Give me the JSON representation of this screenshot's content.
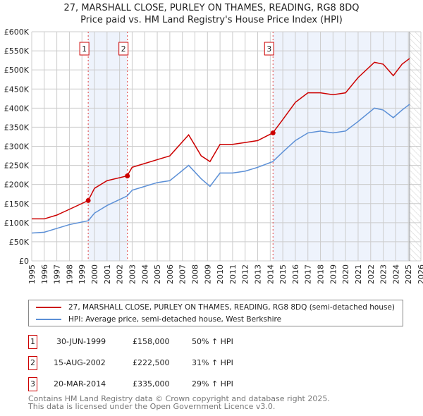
{
  "chart_data": {
    "type": "line",
    "title": "27, MARSHALL CLOSE, PURLEY ON THAMES, READING, RG8 8DQ",
    "subtitle": "Price paid vs. HM Land Registry's House Price Index (HPI)",
    "xlim": [
      1995,
      2026
    ],
    "ylim": [
      0,
      600000
    ],
    "x_ticks": [
      "1995",
      "1996",
      "1997",
      "1998",
      "1999",
      "2000",
      "2001",
      "2002",
      "2003",
      "2004",
      "2005",
      "2006",
      "2007",
      "2008",
      "2009",
      "2010",
      "2011",
      "2012",
      "2013",
      "2014",
      "2015",
      "2016",
      "2017",
      "2018",
      "2019",
      "2020",
      "2021",
      "2022",
      "2023",
      "2024",
      "2025",
      "2026"
    ],
    "y_ticks": [
      {
        "v": 0,
        "label": "£0"
      },
      {
        "v": 50000,
        "label": "£50K"
      },
      {
        "v": 100000,
        "label": "£100K"
      },
      {
        "v": 150000,
        "label": "£150K"
      },
      {
        "v": 200000,
        "label": "£200K"
      },
      {
        "v": 250000,
        "label": "£250K"
      },
      {
        "v": 300000,
        "label": "£300K"
      },
      {
        "v": 350000,
        "label": "£350K"
      },
      {
        "v": 400000,
        "label": "£400K"
      },
      {
        "v": 450000,
        "label": "£450K"
      },
      {
        "v": 500000,
        "label": "£500K"
      },
      {
        "v": 550000,
        "label": "£550K"
      },
      {
        "v": 600000,
        "label": "£600K"
      }
    ],
    "grid": true,
    "series": [
      {
        "name": "27, MARSHALL CLOSE, PURLEY ON THAMES, READING, RG8 8DQ (semi-detached house)",
        "color": "#cc0000",
        "points": [
          [
            1995,
            110000
          ],
          [
            1996,
            110000
          ],
          [
            1997,
            120000
          ],
          [
            1998,
            135000
          ],
          [
            1999.5,
            158000
          ],
          [
            2000,
            190000
          ],
          [
            2001,
            210000
          ],
          [
            2002.6,
            222500
          ],
          [
            2003,
            245000
          ],
          [
            2004,
            255000
          ],
          [
            2005,
            265000
          ],
          [
            2006,
            275000
          ],
          [
            2007.5,
            330000
          ],
          [
            2008.5,
            275000
          ],
          [
            2009.2,
            260000
          ],
          [
            2010,
            305000
          ],
          [
            2011,
            305000
          ],
          [
            2012,
            310000
          ],
          [
            2013,
            315000
          ],
          [
            2014.2,
            335000
          ],
          [
            2015,
            370000
          ],
          [
            2016,
            415000
          ],
          [
            2017,
            440000
          ],
          [
            2018,
            440000
          ],
          [
            2019,
            435000
          ],
          [
            2020,
            440000
          ],
          [
            2021,
            480000
          ],
          [
            2022.3,
            520000
          ],
          [
            2023,
            515000
          ],
          [
            2023.8,
            485000
          ],
          [
            2024.5,
            515000
          ],
          [
            2025.1,
            530000
          ]
        ]
      },
      {
        "name": "HPI: Average price, semi-detached house, West Berkshire",
        "color": "#5b8fd6",
        "points": [
          [
            1995,
            73000
          ],
          [
            1996,
            75000
          ],
          [
            1997,
            85000
          ],
          [
            1998,
            95000
          ],
          [
            1999.5,
            105000
          ],
          [
            2000,
            125000
          ],
          [
            2001,
            145000
          ],
          [
            2002.6,
            170000
          ],
          [
            2003,
            185000
          ],
          [
            2004,
            195000
          ],
          [
            2005,
            205000
          ],
          [
            2006,
            210000
          ],
          [
            2007.5,
            250000
          ],
          [
            2008.5,
            215000
          ],
          [
            2009.2,
            195000
          ],
          [
            2010,
            230000
          ],
          [
            2011,
            230000
          ],
          [
            2012,
            235000
          ],
          [
            2013,
            245000
          ],
          [
            2014.2,
            260000
          ],
          [
            2015,
            285000
          ],
          [
            2016,
            315000
          ],
          [
            2017,
            335000
          ],
          [
            2018,
            340000
          ],
          [
            2019,
            335000
          ],
          [
            2020,
            340000
          ],
          [
            2021,
            365000
          ],
          [
            2022.3,
            400000
          ],
          [
            2023,
            395000
          ],
          [
            2023.8,
            375000
          ],
          [
            2024.5,
            395000
          ],
          [
            2025.1,
            410000
          ]
        ]
      }
    ],
    "sales": [
      {
        "id": "1",
        "x": 1999.5,
        "y": 158000
      },
      {
        "id": "2",
        "x": 2002.62,
        "y": 222500
      },
      {
        "id": "3",
        "x": 2014.22,
        "y": 335000
      }
    ],
    "shaded": [
      [
        1999.5,
        2002.62
      ],
      [
        2014.22,
        2025.1
      ]
    ],
    "hatch_from": 2025.1,
    "legend": "below"
  },
  "transactions": [
    {
      "id": "1",
      "date": "30-JUN-1999",
      "price": "£158,000",
      "hpi": "50% ↑ HPI"
    },
    {
      "id": "2",
      "date": "15-AUG-2002",
      "price": "£222,500",
      "hpi": "31% ↑ HPI"
    },
    {
      "id": "3",
      "date": "20-MAR-2014",
      "price": "£335,000",
      "hpi": "29% ↑ HPI"
    }
  ],
  "footer": {
    "line1": "Contains HM Land Registry data © Crown copyright and database right 2025.",
    "line2": "This data is licensed under the Open Government Licence v3.0."
  }
}
